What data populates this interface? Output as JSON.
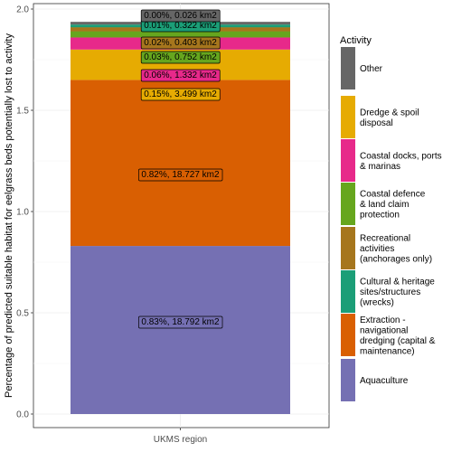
{
  "chart_data": {
    "type": "bar",
    "stacked": true,
    "categories": [
      "UKMS region"
    ],
    "ylabel": "Percentage of predicted suitable habitat for eelgrass beds potentially lost to activity",
    "xlabel": "",
    "ylim": [
      0,
      2.0
    ],
    "yticks": [
      "0.0",
      "0.5",
      "1.0",
      "1.5",
      "2.0"
    ],
    "grid": true,
    "legend": {
      "title": "Activity",
      "position": "right",
      "entries": [
        {
          "key": "other",
          "label_lines": [
            "Other"
          ],
          "color": "#666666"
        },
        {
          "key": "dredge",
          "label_lines": [
            "Dredge & spoil",
            "disposal"
          ],
          "color": "#E6AB02"
        },
        {
          "key": "docks",
          "label_lines": [
            "Coastal docks, ports",
            "& marinas"
          ],
          "color": "#E7298A"
        },
        {
          "key": "defence",
          "label_lines": [
            "Coastal defence",
            "& land claim",
            "protection"
          ],
          "color": "#66A61E"
        },
        {
          "key": "recreation",
          "label_lines": [
            "Recreational",
            "activities",
            "(anchorages only)"
          ],
          "color": "#A6761D"
        },
        {
          "key": "heritage",
          "label_lines": [
            "Cultural & heritage",
            "sites/structures",
            "(wrecks)"
          ],
          "color": "#1B9E77"
        },
        {
          "key": "extraction",
          "label_lines": [
            "Extraction -",
            "navigational",
            "dredging (capital &",
            "maintenance)"
          ],
          "color": "#D95F02"
        },
        {
          "key": "aquaculture",
          "label_lines": [
            "Aquaculture"
          ],
          "color": "#7570B3"
        }
      ]
    },
    "series": [
      {
        "key": "aquaculture",
        "values": [
          0.83
        ],
        "label": "0.83%, 18.792 km2"
      },
      {
        "key": "extraction",
        "values": [
          0.82
        ],
        "label": "0.82%, 18.727 km2"
      },
      {
        "key": "dredge",
        "values": [
          0.15
        ],
        "label": "0.15%, 3.499 km2"
      },
      {
        "key": "docks",
        "values": [
          0.06
        ],
        "label": "0.06%, 1.332 km2"
      },
      {
        "key": "defence",
        "values": [
          0.03
        ],
        "label": "0.03%, 0.752 km2"
      },
      {
        "key": "recreation",
        "values": [
          0.02
        ],
        "label": "0.02%, 0.403 km2"
      },
      {
        "key": "heritage",
        "values": [
          0.01
        ],
        "label": "0.01%, 0.322 km2"
      },
      {
        "key": "other",
        "values": [
          0.0
        ],
        "label": "0.00%, 0.026 km2"
      }
    ],
    "label_fill_colors": {
      "aquaculture": "#7570B3",
      "extraction": "#D95F02",
      "dredge": "#E6AB02",
      "docks": "#E7298A",
      "defence": "#66A61E",
      "recreation": "#A6761D",
      "heritage": "#1B9E77",
      "other": "#666666"
    }
  }
}
